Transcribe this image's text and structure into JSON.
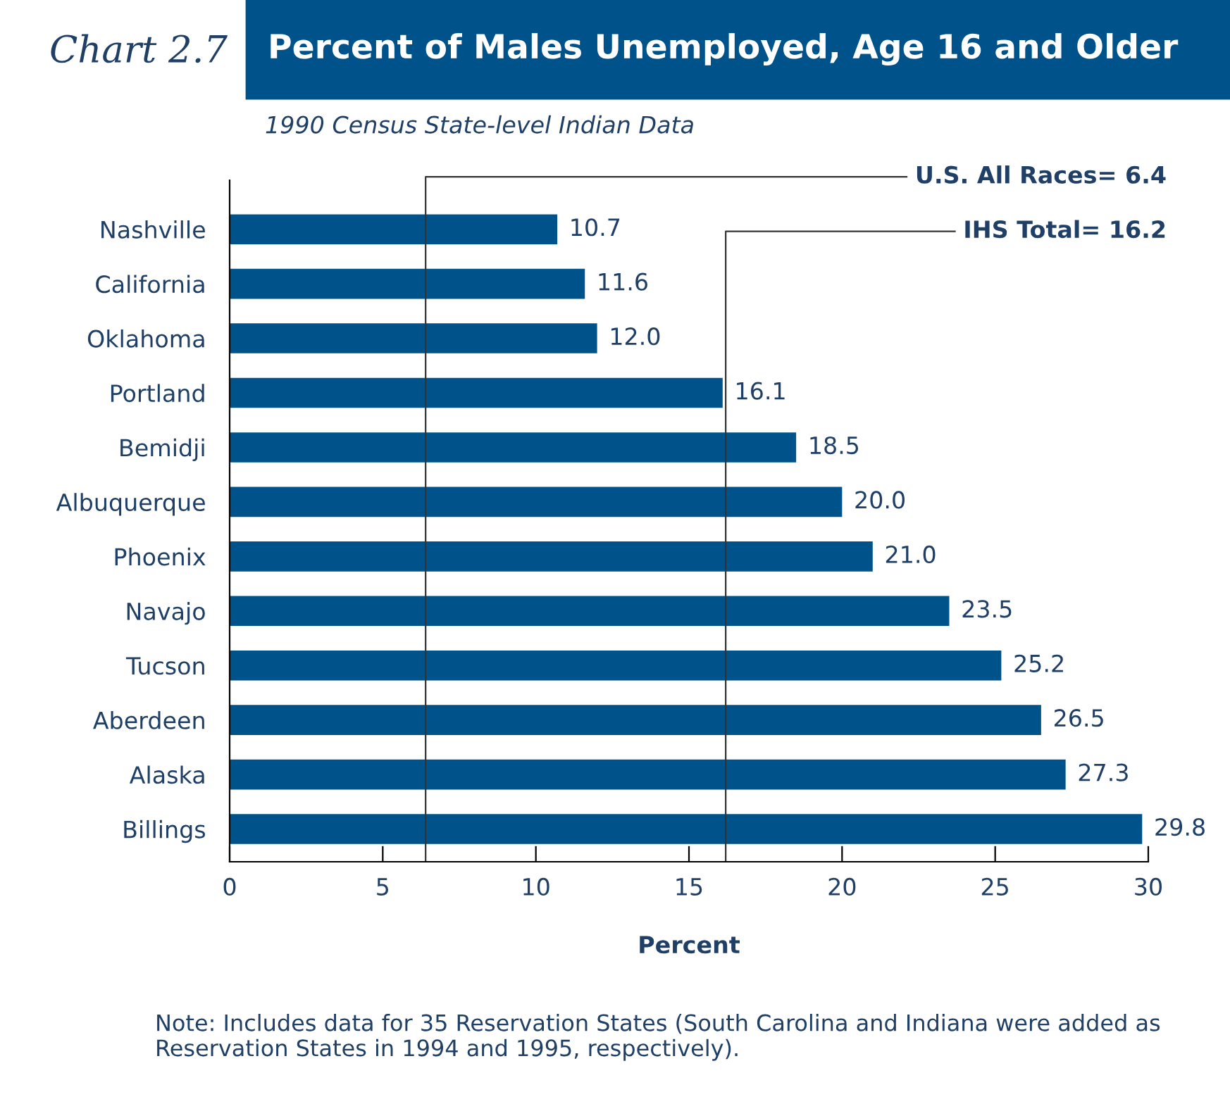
{
  "chart_data": {
    "type": "bar",
    "orientation": "horizontal",
    "title": "Percent of Males Unemployed, Age 16 and Older",
    "subtitle": "1990 Census State-level Indian Data",
    "xlabel": "Percent",
    "categories": [
      "Nashville",
      "California",
      "Oklahoma",
      "Portland",
      "Bemidji",
      "Albuquerque",
      "Phoenix",
      "Navajo",
      "Tucson",
      "Aberdeen",
      "Alaska",
      "Billings"
    ],
    "values": [
      10.7,
      11.6,
      12.0,
      16.1,
      18.5,
      20.0,
      21.0,
      23.5,
      25.2,
      26.5,
      27.3,
      29.8
    ],
    "value_labels": [
      "10.7",
      "11.6",
      "12.0",
      "16.1",
      "18.5",
      "20.0",
      "21.0",
      "23.5",
      "25.2",
      "26.5",
      "27.3",
      "29.8"
    ],
    "color": "#00538a",
    "xlim": [
      0,
      30
    ],
    "xticks": [
      0,
      5,
      10,
      15,
      20,
      25,
      30
    ],
    "grid": false,
    "legend": false,
    "ref_lines": [
      {
        "axis": "x",
        "value": 6.4,
        "label": "U.S. All Races= 6.4",
        "color": "#333333"
      },
      {
        "axis": "x",
        "value": 16.2,
        "label": "IHS Total= 16.2",
        "color": "#333333"
      }
    ],
    "annotations": [
      "Chart 2.7",
      "Note: Includes data for 35 Reservation States (South Carolina and Indiana were added as Reservation States in 1994 and 1995, respectively)."
    ]
  }
}
